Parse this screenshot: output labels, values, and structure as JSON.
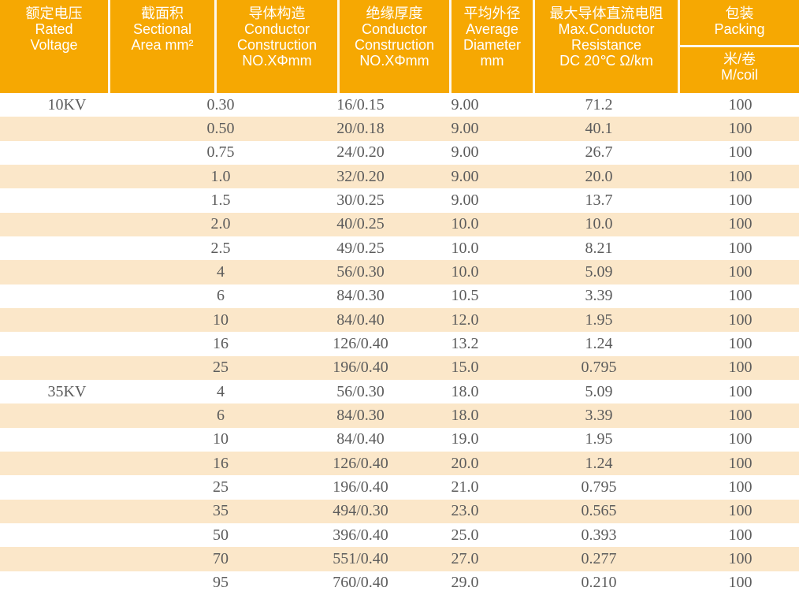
{
  "colors": {
    "header_bg": "#F6A802",
    "stripe_bg": "#FBE7C9",
    "header_text": "#FFFFFF",
    "body_text": "#5C5C5C"
  },
  "table": {
    "header": {
      "voltage": {
        "zh": "额定电压",
        "en1": "Rated",
        "en2": "Voltage"
      },
      "area": {
        "zh": "截面积",
        "en1": "Sectional",
        "en2": "Area mm²"
      },
      "conductor": {
        "zh": "导体构造",
        "en1": "Conductor",
        "en2": "Construction",
        "en3": "NO.XΦmm"
      },
      "insulation": {
        "zh": "绝缘厚度",
        "en1": "Conductor",
        "en2": "Construction",
        "en3": "NO.XΦmm"
      },
      "diameter": {
        "zh": "平均外径",
        "en1": "Average",
        "en2": "Diameter",
        "en3": "mm"
      },
      "resistance": {
        "zh": "最大导体直流电阻",
        "en1": "Max.Conductor",
        "en2": "Resistance",
        "en3": "DC 20℃ Ω/km"
      },
      "packing": {
        "zh": "包装",
        "en": "Packing",
        "unit_zh": "米/卷",
        "unit_en": "M/coil"
      }
    },
    "rows": [
      {
        "voltage": "10KV",
        "area": "0.30",
        "construction": "16/0.15",
        "diameter": "9.00",
        "resistance": "71.2",
        "packing": "100"
      },
      {
        "voltage": "",
        "area": "0.50",
        "construction": "20/0.18",
        "diameter": "9.00",
        "resistance": "40.1",
        "packing": "100"
      },
      {
        "voltage": "",
        "area": "0.75",
        "construction": "24/0.20",
        "diameter": "9.00",
        "resistance": "26.7",
        "packing": "100"
      },
      {
        "voltage": "",
        "area": "1.0",
        "construction": "32/0.20",
        "diameter": "9.00",
        "resistance": "20.0",
        "packing": "100"
      },
      {
        "voltage": "",
        "area": "1.5",
        "construction": "30/0.25",
        "diameter": "9.00",
        "resistance": "13.7",
        "packing": "100"
      },
      {
        "voltage": "",
        "area": "2.0",
        "construction": "40/0.25",
        "diameter": "10.0",
        "resistance": "10.0",
        "packing": "100"
      },
      {
        "voltage": "",
        "area": "2.5",
        "construction": "49/0.25",
        "diameter": "10.0",
        "resistance": "8.21",
        "packing": "100"
      },
      {
        "voltage": "",
        "area": "4",
        "construction": "56/0.30",
        "diameter": "10.0",
        "resistance": "5.09",
        "packing": "100"
      },
      {
        "voltage": "",
        "area": "6",
        "construction": "84/0.30",
        "diameter": "10.5",
        "resistance": "3.39",
        "packing": "100"
      },
      {
        "voltage": "",
        "area": "10",
        "construction": "84/0.40",
        "diameter": "12.0",
        "resistance": "1.95",
        "packing": "100"
      },
      {
        "voltage": "",
        "area": "16",
        "construction": "126/0.40",
        "diameter": "13.2",
        "resistance": "1.24",
        "packing": "100"
      },
      {
        "voltage": "",
        "area": "25",
        "construction": "196/0.40",
        "diameter": "15.0",
        "resistance": "0.795",
        "packing": "100"
      },
      {
        "voltage": "35KV",
        "area": "4",
        "construction": "56/0.30",
        "diameter": "18.0",
        "resistance": "5.09",
        "packing": "100"
      },
      {
        "voltage": "",
        "area": "6",
        "construction": "84/0.30",
        "diameter": "18.0",
        "resistance": "3.39",
        "packing": "100"
      },
      {
        "voltage": "",
        "area": "10",
        "construction": "84/0.40",
        "diameter": "19.0",
        "resistance": "1.95",
        "packing": "100"
      },
      {
        "voltage": "",
        "area": "16",
        "construction": "126/0.40",
        "diameter": "20.0",
        "resistance": "1.24",
        "packing": "100"
      },
      {
        "voltage": "",
        "area": "25",
        "construction": "196/0.40",
        "diameter": "21.0",
        "resistance": "0.795",
        "packing": "100"
      },
      {
        "voltage": "",
        "area": "35",
        "construction": "494/0.30",
        "diameter": "23.0",
        "resistance": "0.565",
        "packing": "100"
      },
      {
        "voltage": "",
        "area": "50",
        "construction": "396/0.40",
        "diameter": "25.0",
        "resistance": "0.393",
        "packing": "100"
      },
      {
        "voltage": "",
        "area": "70",
        "construction": "551/0.40",
        "diameter": "27.0",
        "resistance": "0.277",
        "packing": "100"
      },
      {
        "voltage": "",
        "area": "95",
        "construction": "760/0.40",
        "diameter": "29.0",
        "resistance": "0.210",
        "packing": "100"
      }
    ]
  }
}
